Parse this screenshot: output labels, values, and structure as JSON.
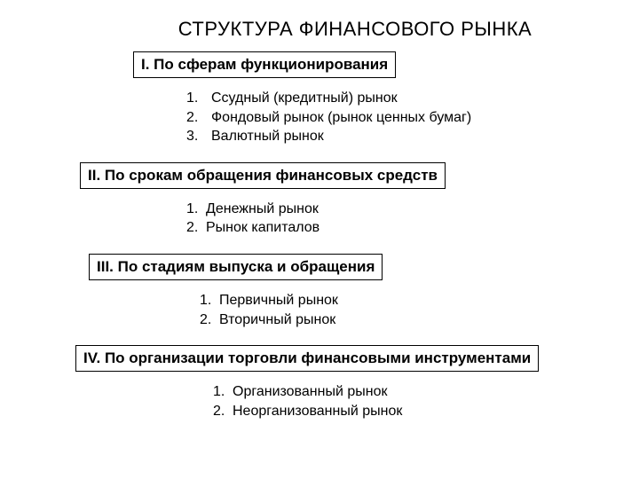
{
  "title": "СТРУКТУРА ФИНАНСОВОГО РЫНКА",
  "sections": [
    {
      "header": "I. По сферам функционирования",
      "items": [
        {
          "num": "1.",
          "text": "Ссудный (кредитный) рынок"
        },
        {
          "num": "2.",
          "text": "Фондовый рынок (рынок ценных бумаг)"
        },
        {
          "num": "3.",
          "text": "Валютный рынок"
        }
      ]
    },
    {
      "header": "II. По срокам обращения финансовых средств",
      "items": [
        {
          "num": "1.",
          "text": "Денежный рынок"
        },
        {
          "num": "2.",
          "text": "Рынок капиталов"
        }
      ]
    },
    {
      "header": "III. По стадиям выпуска и обращения",
      "items": [
        {
          "num": "1.",
          "text": "Первичный рынок"
        },
        {
          "num": "2.",
          "text": "Вторичный рынок"
        }
      ]
    },
    {
      "header": "IV. По организации торговли финансовыми инструментами",
      "items": [
        {
          "num": "1.",
          "text": "Организованный рынок"
        },
        {
          "num": "2.",
          "text": "Неорганизованный рынок"
        }
      ]
    }
  ],
  "style": {
    "background_color": "#ffffff",
    "text_color": "#000000",
    "border_color": "#000000",
    "title_fontsize": 22,
    "header_fontsize": 17,
    "body_fontsize": 16
  }
}
